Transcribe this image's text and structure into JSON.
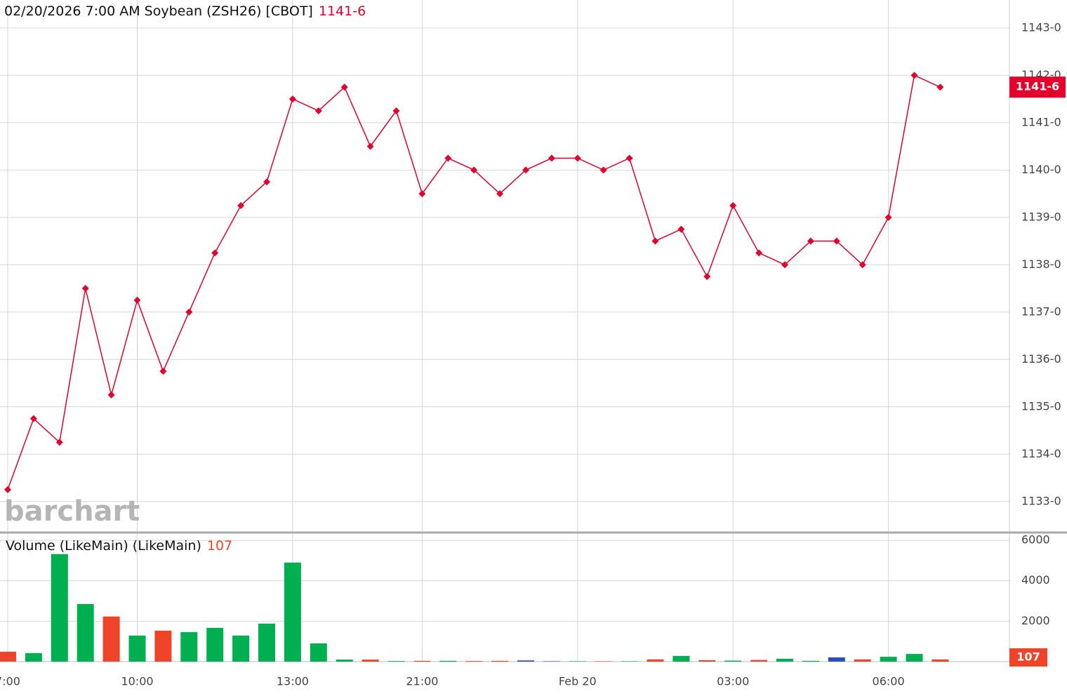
{
  "chart_data": [
    {
      "type": "line",
      "title": "02/20/2026  7:00 AM Soybean (ZSH26) [CBOT]",
      "last_label": "1141-6",
      "watermark": "barchart",
      "categories": [
        "7:00",
        null,
        null,
        null,
        null,
        "10:00",
        null,
        null,
        null,
        null,
        null,
        "13:00",
        null,
        null,
        null,
        null,
        "21:00",
        null,
        null,
        null,
        null,
        null,
        "Feb 20",
        null,
        null,
        null,
        null,
        null,
        "03:00",
        null,
        null,
        null,
        null,
        null,
        "06:00",
        null,
        null
      ],
      "series": [
        {
          "color": "#e4002b",
          "values": [
            1133.25,
            1134.75,
            1134.25,
            1137.5,
            1135.25,
            1137.25,
            1135.75,
            1137.0,
            1138.25,
            1139.25,
            1139.75,
            1141.5,
            1141.25,
            1141.75,
            1140.5,
            1141.25,
            1139.5,
            1140.25,
            1140.0,
            1139.5,
            1140.0,
            1140.25,
            1140.25,
            1140.0,
            1140.25,
            1138.5,
            1138.75,
            1137.75,
            1139.25,
            1138.25,
            1138.0,
            1138.5,
            1138.5,
            1138.0,
            1139.0,
            1142.0,
            1141.75
          ]
        }
      ],
      "ylim": [
        1132.36,
        1143.59
      ],
      "yticks": [
        {
          "value": 1133,
          "label": "1133-0"
        },
        {
          "value": 1134,
          "label": "1134-0"
        },
        {
          "value": 1135,
          "label": "1135-0"
        },
        {
          "value": 1136,
          "label": "1136-0"
        },
        {
          "value": 1137,
          "label": "1137-0"
        },
        {
          "value": 1138,
          "label": "1138-0"
        },
        {
          "value": 1139,
          "label": "1139-0"
        },
        {
          "value": 1140,
          "label": "1140-0"
        },
        {
          "value": 1141,
          "label": "1141-0"
        },
        {
          "value": 1142,
          "label": "1142-0"
        },
        {
          "value": 1143,
          "label": "1143-0"
        }
      ],
      "grid": true
    },
    {
      "type": "bar",
      "title": "Volume (LikeMain)  (LikeMain)",
      "values": [
        490,
        420,
        5320,
        2850,
        2230,
        1290,
        1530,
        1460,
        1670,
        1290,
        1880,
        4900,
        900,
        100,
        100,
        30,
        40,
        40,
        30,
        40,
        60,
        20,
        20,
        20,
        20,
        110,
        280,
        70,
        50,
        80,
        140,
        40,
        210,
        110,
        240,
        380,
        107
      ],
      "colors": [
        "#f0442a",
        "#00b050",
        "#00b050",
        "#00b050",
        "#f0442a",
        "#00b050",
        "#f0442a",
        "#00b050",
        "#00b050",
        "#00b050",
        "#00b050",
        "#00b050",
        "#00b050",
        "#00b050",
        "#f0442a",
        "#00b050",
        "#f0442a",
        "#00b050",
        "#f0442a",
        "#f0442a",
        "#2a4fbf",
        "#2a4fbf",
        "#00b050",
        "#f0442a",
        "#00b050",
        "#f0442a",
        "#00b050",
        "#f0442a",
        "#00b050",
        "#f0442a",
        "#00b050",
        "#00b050",
        "#2a4fbf",
        "#f0442a",
        "#00b050",
        "#00b050",
        "#f0442a"
      ],
      "ylim": [
        0,
        6350
      ],
      "yticks": [
        2000,
        4000,
        6000
      ],
      "grid": true
    }
  ]
}
